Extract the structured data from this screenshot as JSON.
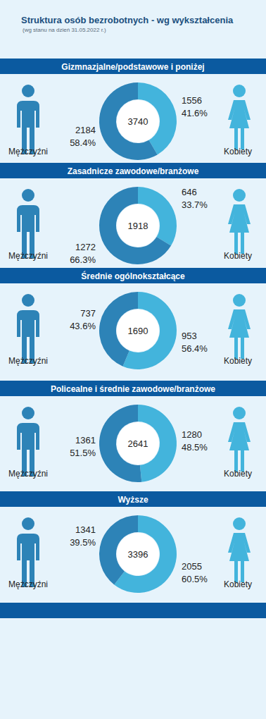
{
  "header": {
    "title": "Struktura osób bezrobotnych - wg wykształcenia",
    "subtitle": "(wg stanu na dzień 31.05.2022 r.)"
  },
  "chart_data": [
    {
      "type": "pie",
      "title": "Gizmnazjalne/podstawowe i poniżej",
      "categories": [
        "Mężczyźni",
        "Kobiety"
      ],
      "values": [
        2184,
        1556
      ],
      "percentage_labels": [
        "58.4%",
        "41.6%"
      ],
      "total": 3740,
      "colors": [
        "#2d83b7",
        "#43b4dc"
      ],
      "data_labels": true
    },
    {
      "type": "pie",
      "title": "Zasadnicze zawodowe/branżowe",
      "categories": [
        "Mężczyźni",
        "Kobiety"
      ],
      "values": [
        1272,
        646
      ],
      "percentage_labels": [
        "66.3%",
        "33.7%"
      ],
      "total": 1918,
      "colors": [
        "#2d83b7",
        "#43b4dc"
      ],
      "data_labels": true
    },
    {
      "type": "pie",
      "title": "Średnie ogólnokształcące",
      "categories": [
        "Mężczyźni",
        "Kobiety"
      ],
      "values": [
        737,
        953
      ],
      "percentage_labels": [
        "43.6%",
        "56.4%"
      ],
      "total": 1690,
      "colors": [
        "#2d83b7",
        "#43b4dc"
      ],
      "data_labels": true
    },
    {
      "type": "pie",
      "title": "Policealne i średnie zawodowe/branżowe",
      "categories": [
        "Mężczyźni",
        "Kobiety"
      ],
      "values": [
        1361,
        1280
      ],
      "percentage_labels": [
        "51.5%",
        "48.5%"
      ],
      "total": 2641,
      "colors": [
        "#2d83b7",
        "#43b4dc"
      ],
      "data_labels": true
    },
    {
      "type": "pie",
      "title": "Wyższe",
      "categories": [
        "Mężczyźni",
        "Kobiety"
      ],
      "values": [
        1341,
        2055
      ],
      "percentage_labels": [
        "39.5%",
        "60.5%"
      ],
      "total": 3396,
      "colors": [
        "#2d83b7",
        "#43b4dc"
      ],
      "data_labels": true
    }
  ]
}
